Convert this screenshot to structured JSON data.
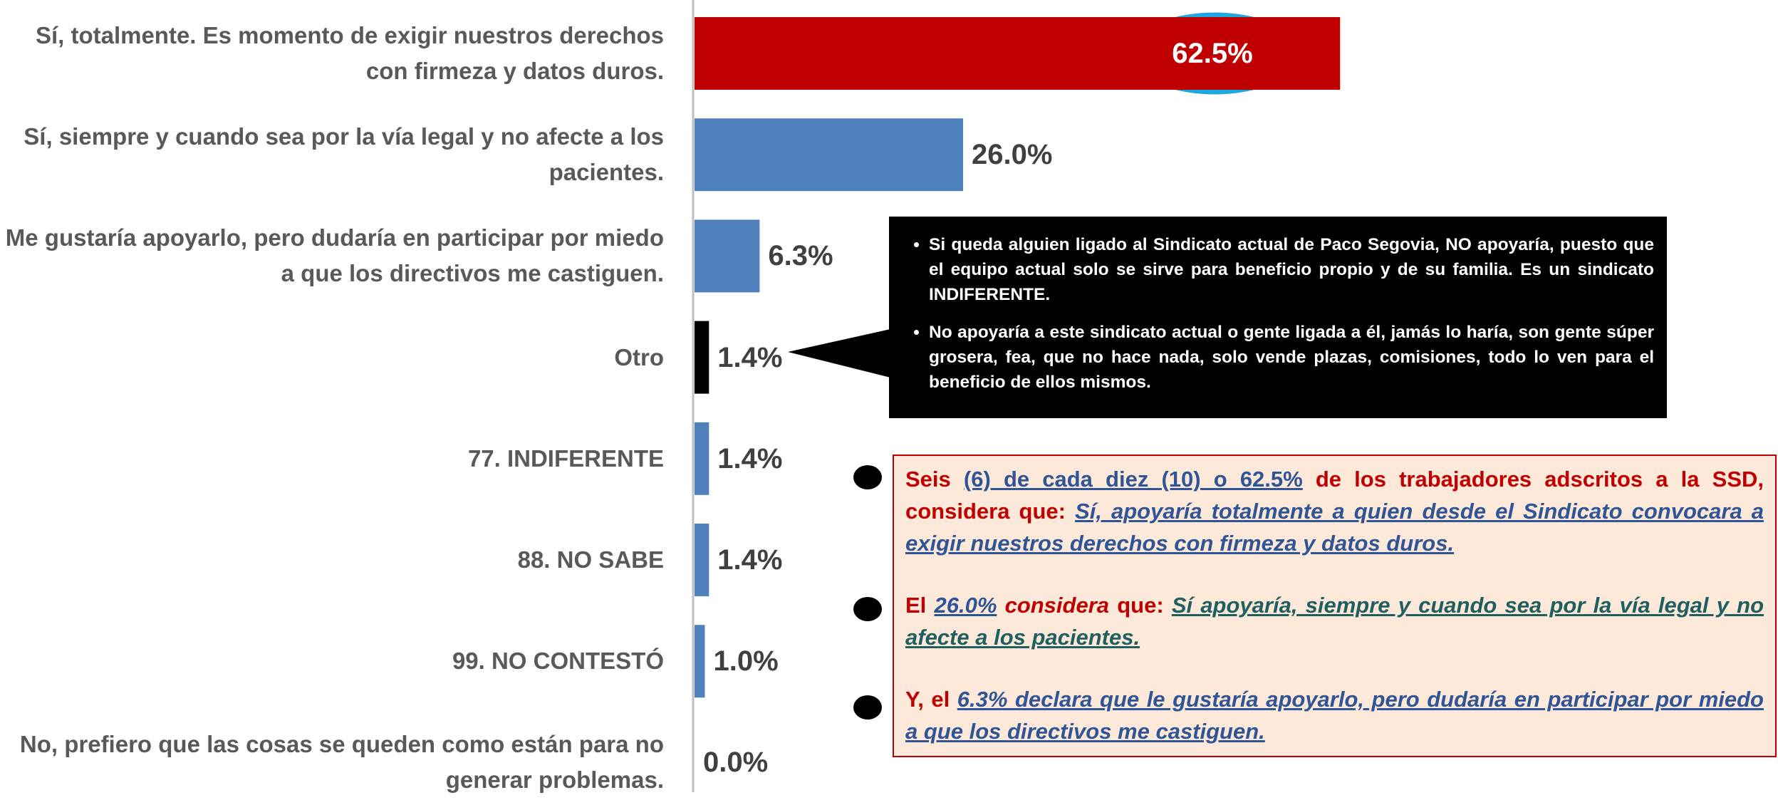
{
  "chart_data": {
    "type": "barh",
    "categories": [
      "Sí, totalmente. Es momento de exigir nuestros derechos con firmeza y datos duros.",
      "Sí, siempre y cuando sea por la vía legal y no afecte a los pacientes.",
      "Me gustaría apoyarlo, pero dudaría en participar por miedo a que los directivos me castiguen.",
      "Otro",
      "77. INDIFERENTE",
      "88. NO SABE",
      "99. NO CONTESTÓ",
      "No, prefiero que las cosas se queden como están para no generar problemas."
    ],
    "values": [
      62.5,
      26.0,
      6.3,
      1.4,
      1.4,
      1.4,
      1.0,
      0.0
    ],
    "value_labels": [
      "62.5%",
      "26.0%",
      "6.3%",
      "1.4%",
      "1.4%",
      "1.4%",
      "1.0%",
      "0.0%"
    ],
    "colors": [
      "#c00000",
      "#4f81bd",
      "#4f81bd",
      "#000000",
      "#4f81bd",
      "#4f81bd",
      "#4f81bd",
      "#4f81bd"
    ]
  },
  "callout": [
    "Si queda alguien ligado al Sindicato actual de Paco Segovia, NO apoyaría, puesto que el equipo actual solo se sirve para beneficio propio y de su familia. Es un sindicato INDIFERENTE.",
    "No apoyaría a este sindicato actual o gente ligada a él,  jamás lo haría, son gente súper grosera, fea, que no hace nada, solo vende plazas, comisiones, todo lo ven para el beneficio de ellos mismos."
  ],
  "summary": [
    [
      "Seis ",
      "(6) de cada diez (10) o 62.5%",
      " de los trabajadores adscritos a la SSD, considera que: ",
      "Sí, apoyaría totalmente a quien desde el Sindicato convocara a exigir nuestros derechos con firmeza y datos duros."
    ],
    [
      "El ",
      "26.0%",
      " considera",
      " que: ",
      "Sí apoyaría, siempre y cuando sea por la vía legal y no afecte a los pacientes."
    ],
    [
      "Y, el ",
      "6.3% declara que le gustaría apoyarlo, pero dudaría en participar por miedo a que los directivos me castiguen."
    ]
  ]
}
